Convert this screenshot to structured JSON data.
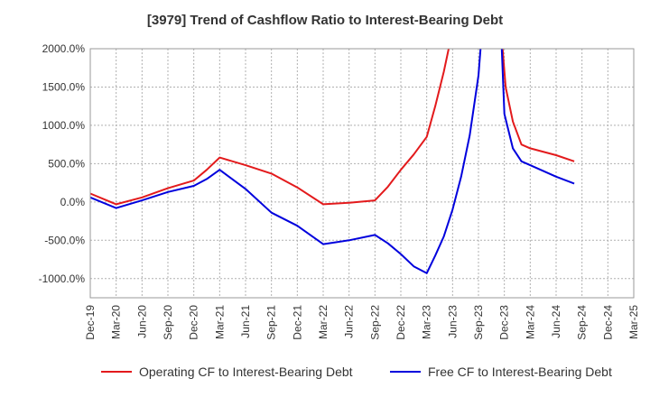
{
  "chart_data": {
    "type": "line",
    "title": "[3979]  Trend of Cashflow Ratio to Interest-Bearing Debt",
    "x": [
      "Dec-19",
      "Mar-20",
      "Jun-20",
      "Sep-20",
      "Dec-20",
      "Mar-21",
      "Jun-21",
      "Sep-21",
      "Dec-21",
      "Mar-22",
      "Jun-22",
      "Sep-22",
      "Dec-22",
      "Mar-23",
      "Jun-23",
      "Sep-23",
      "Dec-23",
      "Mar-24",
      "Jun-24",
      "Sep-24",
      "Dec-24",
      "Mar-25"
    ],
    "ylim": [
      -1250,
      2000
    ],
    "y_ticks": [
      2000,
      1500,
      1000,
      500,
      0,
      -500,
      -1000
    ],
    "y_tick_labels": [
      "2000.0%",
      "1500.0%",
      "1000.0%",
      "500.0%",
      "0.0%",
      "-500.0%",
      "-1000.0%"
    ],
    "grid": true,
    "legend_position": "bottom",
    "series": [
      {
        "name": "Operating CF to Interest-Bearing Debt",
        "color": "#e31a1c",
        "points": [
          [
            0,
            110
          ],
          [
            1,
            -30
          ],
          [
            2,
            60
          ],
          [
            3,
            180
          ],
          [
            4,
            280
          ],
          [
            4.5,
            420
          ],
          [
            5,
            580
          ],
          [
            6,
            480
          ],
          [
            7,
            370
          ],
          [
            8,
            190
          ],
          [
            9,
            -30
          ],
          [
            10,
            -10
          ],
          [
            11,
            20
          ],
          [
            11.5,
            200
          ],
          [
            12,
            420
          ],
          [
            12.5,
            620
          ],
          [
            13,
            850
          ],
          [
            13.33,
            1250
          ],
          [
            13.66,
            1700
          ],
          [
            13.85,
            2000
          ],
          [
            null,
            null
          ],
          [
            15.93,
            2000
          ],
          [
            16.05,
            1500
          ],
          [
            16.33,
            1050
          ],
          [
            16.66,
            750
          ],
          [
            17,
            700
          ],
          [
            18,
            610
          ],
          [
            18.7,
            530
          ]
        ]
      },
      {
        "name": "Free CF to Interest-Bearing Debt",
        "color": "#0000dd",
        "points": [
          [
            0,
            60
          ],
          [
            1,
            -80
          ],
          [
            2,
            20
          ],
          [
            3,
            130
          ],
          [
            4,
            210
          ],
          [
            4.5,
            300
          ],
          [
            5,
            420
          ],
          [
            6,
            170
          ],
          [
            7,
            -140
          ],
          [
            8,
            -310
          ],
          [
            9,
            -550
          ],
          [
            10,
            -500
          ],
          [
            11,
            -430
          ],
          [
            11.5,
            -540
          ],
          [
            12,
            -680
          ],
          [
            12.5,
            -840
          ],
          [
            13,
            -930
          ],
          [
            13.33,
            -700
          ],
          [
            13.66,
            -450
          ],
          [
            14,
            -100
          ],
          [
            14.33,
            330
          ],
          [
            14.66,
            870
          ],
          [
            15,
            1650
          ],
          [
            15.08,
            2000
          ],
          [
            null,
            null
          ],
          [
            15.9,
            2000
          ],
          [
            16,
            1150
          ],
          [
            16.33,
            700
          ],
          [
            16.66,
            530
          ],
          [
            17,
            480
          ],
          [
            18,
            330
          ],
          [
            18.7,
            240
          ]
        ]
      }
    ]
  }
}
